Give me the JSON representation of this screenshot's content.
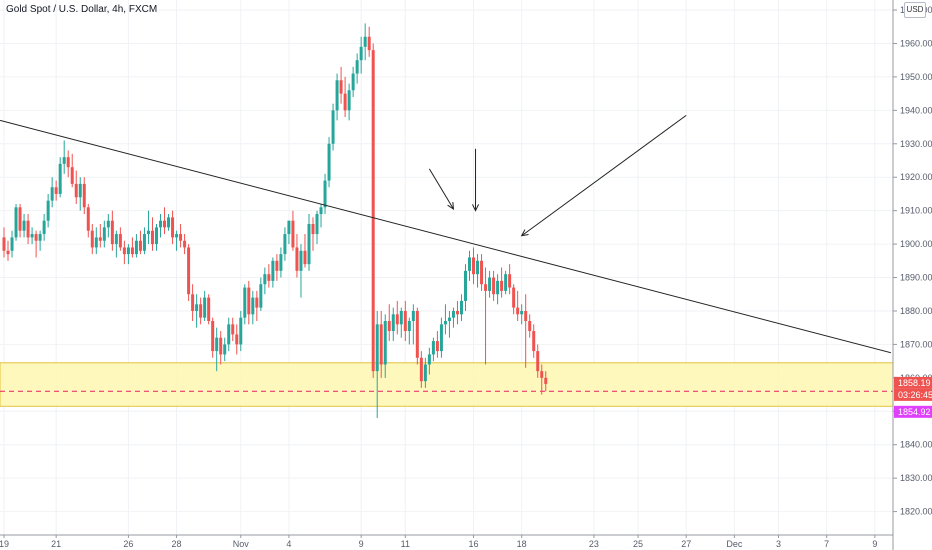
{
  "header": {
    "symbol_title": "Gold Spot / U.S. Dollar, 4h, FXCM",
    "currency": "USD"
  },
  "colors": {
    "up": "#26a69a",
    "down": "#ef5350",
    "zone_fill": "#fff7b2",
    "zone_border": "#e0c33a",
    "trendline": "#222222",
    "price_line": "#e91e63",
    "last_price_badge": "#ef5350",
    "countdown_badge": "#ef5350",
    "alt_price_badge": "#e040fb"
  },
  "badges": {
    "last_price": "1858.19",
    "countdown": "03:26:45",
    "alt_price": "1854.92"
  },
  "chart_data": {
    "type": "candlestick",
    "title": "Gold Spot / U.S. Dollar, 4h, FXCM",
    "interval": "4h",
    "y_axis_position": "right",
    "ylim": [
      1813,
      1973
    ],
    "y_ticks": [
      1820,
      1830,
      1840,
      1850,
      1860,
      1870,
      1880,
      1890,
      1900,
      1910,
      1920,
      1930,
      1940,
      1950,
      1960,
      1970
    ],
    "y_tick_labels": [
      "1820.00",
      "1830.00",
      "1840.00",
      "1850.00",
      "1860.00",
      "1870.00",
      "1880.00",
      "1890.00",
      "1900.00",
      "1910.00",
      "1920.00",
      "1930.00",
      "1940.00",
      "1950.00",
      "1960.00",
      "1970.00"
    ],
    "x_ticks": [
      {
        "bar": 0,
        "label": "19"
      },
      {
        "bar": 13,
        "label": "21"
      },
      {
        "bar": 31,
        "label": "26"
      },
      {
        "bar": 43,
        "label": "28"
      },
      {
        "bar": 59,
        "label": "Nov"
      },
      {
        "bar": 71,
        "label": "4"
      },
      {
        "bar": 89,
        "label": "9"
      },
      {
        "bar": 100,
        "label": "11"
      },
      {
        "bar": 117,
        "label": "16"
      },
      {
        "bar": 129,
        "label": "18"
      },
      {
        "bar": 147,
        "label": "23"
      },
      {
        "bar": 158,
        "label": "25"
      },
      {
        "bar": 170,
        "label": "27"
      },
      {
        "bar": 182,
        "label": "Dec"
      },
      {
        "bar": 193,
        "label": "3"
      },
      {
        "bar": 205,
        "label": "7"
      },
      {
        "bar": 217,
        "label": "9"
      }
    ],
    "candles": [
      [
        1902.0,
        1905.0,
        1896.0,
        1898.0
      ],
      [
        1898.0,
        1901.0,
        1895.0,
        1897.0
      ],
      [
        1898.0,
        1904.0,
        1896.0,
        1902.0
      ],
      [
        1902.0,
        1912.0,
        1901.0,
        1911.0
      ],
      [
        1911.0,
        1912.0,
        1902.0,
        1904.0
      ],
      [
        1904.0,
        1909.0,
        1902.0,
        1907.0
      ],
      [
        1907.0,
        1909.0,
        1900.0,
        1902.0
      ],
      [
        1902.0,
        1905.0,
        1900.0,
        1903.0
      ],
      [
        1903.0,
        1904.0,
        1896.0,
        1901.0
      ],
      [
        1901.0,
        1904.0,
        1898.0,
        1903.0
      ],
      [
        1903.0,
        1909.0,
        1901.0,
        1907.0
      ],
      [
        1907.0,
        1915.0,
        1905.0,
        1913.0
      ],
      [
        1913.0,
        1920.0,
        1911.0,
        1917.0
      ],
      [
        1917.0,
        1919.0,
        1913.0,
        1915.0
      ],
      [
        1915.0,
        1926.0,
        1914.0,
        1924.0
      ],
      [
        1924.0,
        1931.0,
        1921.0,
        1926.0
      ],
      [
        1926.0,
        1928.0,
        1920.0,
        1923.0
      ],
      [
        1923.0,
        1927.0,
        1917.0,
        1918.0
      ],
      [
        1918.0,
        1922.0,
        1912.0,
        1914.0
      ],
      [
        1914.0,
        1920.0,
        1910.0,
        1918.0
      ],
      [
        1918.0,
        1920.0,
        1909.0,
        1911.0
      ],
      [
        1911.0,
        1912.0,
        1902.0,
        1904.0
      ],
      [
        1904.0,
        1906.0,
        1897.0,
        1899.0
      ],
      [
        1899.0,
        1905.0,
        1897.0,
        1902.0
      ],
      [
        1902.0,
        1906.0,
        1899.0,
        1901.0
      ],
      [
        1901.0,
        1907.0,
        1899.0,
        1905.0
      ],
      [
        1905.0,
        1909.0,
        1902.0,
        1907.0
      ],
      [
        1907.0,
        1910.0,
        1898.0,
        1900.0
      ],
      [
        1900.0,
        1904.0,
        1896.0,
        1903.0
      ],
      [
        1903.0,
        1905.0,
        1898.0,
        1899.0
      ],
      [
        1899.0,
        1901.0,
        1894.0,
        1897.0
      ],
      [
        1897.0,
        1900.0,
        1894.0,
        1899.0
      ],
      [
        1899.0,
        1902.0,
        1896.0,
        1897.0
      ],
      [
        1897.0,
        1903.0,
        1896.0,
        1901.0
      ],
      [
        1901.0,
        1904.0,
        1897.0,
        1898.0
      ],
      [
        1898.0,
        1905.0,
        1897.0,
        1903.0
      ],
      [
        1903.0,
        1910.0,
        1900.0,
        1904.0
      ],
      [
        1904.0,
        1908.0,
        1898.0,
        1900.0
      ],
      [
        1900.0,
        1906.0,
        1898.0,
        1905.0
      ],
      [
        1905.0,
        1909.0,
        1902.0,
        1907.0
      ],
      [
        1907.0,
        1911.0,
        1903.0,
        1905.0
      ],
      [
        1905.0,
        1909.0,
        1904.0,
        1908.0
      ],
      [
        1908.0,
        1910.0,
        1900.0,
        1902.0
      ],
      [
        1902.0,
        1904.0,
        1898.0,
        1903.0
      ],
      [
        1903.0,
        1906.0,
        1899.0,
        1901.0
      ],
      [
        1901.0,
        1903.0,
        1897.0,
        1899.0
      ],
      [
        1899.0,
        1900.0,
        1883.0,
        1885.0
      ],
      [
        1885.0,
        1888.0,
        1877.0,
        1880.0
      ],
      [
        1880.0,
        1885.0,
        1875.0,
        1882.0
      ],
      [
        1882.0,
        1884.0,
        1876.0,
        1878.0
      ],
      [
        1878.0,
        1886.0,
        1877.0,
        1884.0
      ],
      [
        1884.0,
        1885.0,
        1876.0,
        1877.0
      ],
      [
        1877.0,
        1878.0,
        1866.0,
        1868.0
      ],
      [
        1868.0,
        1875.0,
        1862.0,
        1872.0
      ],
      [
        1872.0,
        1874.0,
        1864.0,
        1867.0
      ],
      [
        1867.0,
        1872.0,
        1865.0,
        1870.0
      ],
      [
        1870.0,
        1878.0,
        1868.0,
        1876.0
      ],
      [
        1876.0,
        1878.0,
        1871.0,
        1873.0
      ],
      [
        1873.0,
        1876.0,
        1867.0,
        1870.0
      ],
      [
        1870.0,
        1880.0,
        1868.0,
        1878.0
      ],
      [
        1878.0,
        1888.0,
        1876.0,
        1887.0
      ],
      [
        1887.0,
        1889.0,
        1876.0,
        1879.0
      ],
      [
        1879.0,
        1886.0,
        1876.0,
        1884.0
      ],
      [
        1884.0,
        1886.0,
        1877.0,
        1881.0
      ],
      [
        1881.0,
        1890.0,
        1880.0,
        1888.0
      ],
      [
        1888.0,
        1893.0,
        1885.0,
        1891.0
      ],
      [
        1891.0,
        1894.0,
        1887.0,
        1889.0
      ],
      [
        1889.0,
        1896.0,
        1887.0,
        1895.0
      ],
      [
        1895.0,
        1897.0,
        1889.0,
        1892.0
      ],
      [
        1892.0,
        1899.0,
        1890.0,
        1897.0
      ],
      [
        1897.0,
        1905.0,
        1895.0,
        1903.0
      ],
      [
        1903.0,
        1907.0,
        1900.0,
        1907.0
      ],
      [
        1907.0,
        1910.0,
        1898.0,
        1899.0
      ],
      [
        1899.0,
        1903.0,
        1890.0,
        1892.0
      ],
      [
        1892.0,
        1900.0,
        1884.0,
        1898.0
      ],
      [
        1898.0,
        1903.0,
        1893.0,
        1894.0
      ],
      [
        1894.0,
        1909.0,
        1892.0,
        1906.0
      ],
      [
        1906.0,
        1908.0,
        1898.0,
        1903.0
      ],
      [
        1903.0,
        1910.0,
        1900.0,
        1909.0
      ],
      [
        1909.0,
        1912.0,
        1905.0,
        1911.0
      ],
      [
        1911.0,
        1921.0,
        1909.0,
        1919.0
      ],
      [
        1919.0,
        1932.0,
        1917.0,
        1930.0
      ],
      [
        1930.0,
        1942.0,
        1928.0,
        1940.0
      ],
      [
        1940.0,
        1951.0,
        1937.0,
        1949.0
      ],
      [
        1949.0,
        1953.0,
        1942.0,
        1945.0
      ],
      [
        1945.0,
        1950.0,
        1938.0,
        1940.0
      ],
      [
        1940.0,
        1948.0,
        1937.0,
        1946.0
      ],
      [
        1946.0,
        1953.0,
        1944.0,
        1951.0
      ],
      [
        1951.0,
        1957.0,
        1948.0,
        1955.0
      ],
      [
        1955.0,
        1962.0,
        1951.0,
        1959.0
      ],
      [
        1959.0,
        1966.0,
        1955.0,
        1962.0
      ],
      [
        1962.0,
        1965.0,
        1956.0,
        1958.0
      ],
      [
        1958.0,
        1960.0,
        1860.0,
        1862.0
      ],
      [
        1862.0,
        1880.0,
        1848.0,
        1876.0
      ],
      [
        1876.0,
        1880.0,
        1860.0,
        1864.0
      ],
      [
        1864.0,
        1879.0,
        1860.0,
        1877.0
      ],
      [
        1877.0,
        1882.0,
        1871.0,
        1874.0
      ],
      [
        1874.0,
        1881.0,
        1871.0,
        1879.0
      ],
      [
        1879.0,
        1883.0,
        1873.0,
        1876.0
      ],
      [
        1876.0,
        1881.0,
        1872.0,
        1880.0
      ],
      [
        1880.0,
        1883.0,
        1871.0,
        1874.0
      ],
      [
        1874.0,
        1878.0,
        1870.0,
        1877.0
      ],
      [
        1877.0,
        1882.0,
        1870.0,
        1880.0
      ],
      [
        1880.0,
        1881.0,
        1864.0,
        1866.0
      ],
      [
        1866.0,
        1868.0,
        1857.0,
        1859.0
      ],
      [
        1859.0,
        1866.0,
        1857.0,
        1864.0
      ],
      [
        1864.0,
        1869.0,
        1861.0,
        1867.0
      ],
      [
        1867.0,
        1872.0,
        1865.0,
        1871.0
      ],
      [
        1871.0,
        1874.0,
        1866.0,
        1868.0
      ],
      [
        1868.0,
        1878.0,
        1866.0,
        1876.0
      ],
      [
        1876.0,
        1882.0,
        1873.0,
        1877.0
      ],
      [
        1877.0,
        1880.0,
        1872.0,
        1878.0
      ],
      [
        1878.0,
        1881.0,
        1875.0,
        1880.0
      ],
      [
        1880.0,
        1883.0,
        1876.0,
        1879.0
      ],
      [
        1879.0,
        1885.0,
        1877.0,
        1883.0
      ],
      [
        1883.0,
        1894.0,
        1880.0,
        1892.0
      ],
      [
        1892.0,
        1898.0,
        1889.0,
        1896.0
      ],
      [
        1896.0,
        1899.0,
        1888.0,
        1891.0
      ],
      [
        1891.0,
        1897.0,
        1887.0,
        1895.0
      ],
      [
        1895.0,
        1897.0,
        1886.0,
        1888.0
      ],
      [
        1888.0,
        1893.0,
        1864.0,
        1886.0
      ],
      [
        1886.0,
        1892.0,
        1884.0,
        1890.0
      ],
      [
        1890.0,
        1892.0,
        1883.0,
        1885.0
      ],
      [
        1885.0,
        1891.0,
        1882.0,
        1889.0
      ],
      [
        1889.0,
        1893.0,
        1884.0,
        1886.0
      ],
      [
        1886.0,
        1892.0,
        1885.0,
        1891.0
      ],
      [
        1891.0,
        1894.0,
        1885.0,
        1887.0
      ],
      [
        1887.0,
        1888.0,
        1879.0,
        1881.0
      ],
      [
        1881.0,
        1886.0,
        1877.0,
        1879.0
      ],
      [
        1879.0,
        1882.0,
        1876.0,
        1880.0
      ],
      [
        1880.0,
        1885.0,
        1863.0,
        1877.0
      ],
      [
        1877.0,
        1879.0,
        1872.0,
        1874.0
      ],
      [
        1874.0,
        1876.0,
        1866.0,
        1868.0
      ],
      [
        1868.0,
        1870.0,
        1860.0,
        1862.0
      ],
      [
        1862.0,
        1864.0,
        1855.0,
        1860.0
      ],
      [
        1860.0,
        1862.0,
        1856.0,
        1858.19
      ]
    ],
    "support_zone": {
      "low": 1851.5,
      "high": 1864.5
    },
    "price_line": 1856.0,
    "trendline": {
      "from": {
        "bar": -1,
        "price": 1937.0
      },
      "to": {
        "bar": 221,
        "price": 1867.5
      }
    },
    "arrows": [
      {
        "from": {
          "bar": 106,
          "price": 1922.5
        },
        "to": {
          "bar": 112,
          "price": 1910.5
        }
      },
      {
        "from": {
          "bar": 117.5,
          "price": 1928.5
        },
        "to": {
          "bar": 117.5,
          "price": 1910.0
        }
      },
      {
        "from": {
          "bar": 170,
          "price": 1938.5
        },
        "to": {
          "bar": 129,
          "price": 1902.5
        }
      }
    ]
  }
}
